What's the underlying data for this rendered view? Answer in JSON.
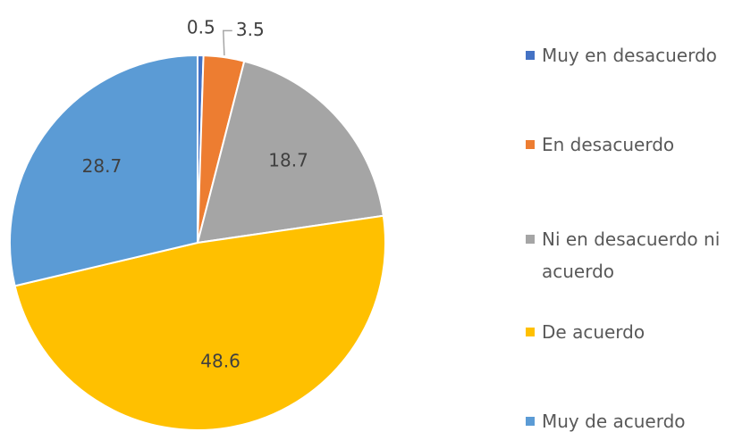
{
  "chart_data": {
    "type": "pie",
    "categories": [
      "Muy en desacuerdo",
      "En desacuerdo",
      "Ni en desacuerdo ni acuerdo",
      "De acuerdo",
      "Muy de acuerdo"
    ],
    "values": [
      0.5,
      3.5,
      18.7,
      48.6,
      28.7
    ],
    "colors": [
      "#4472c4",
      "#ed7d31",
      "#a5a5a5",
      "#ffc000",
      "#5b9bd5"
    ],
    "legend": "right"
  }
}
